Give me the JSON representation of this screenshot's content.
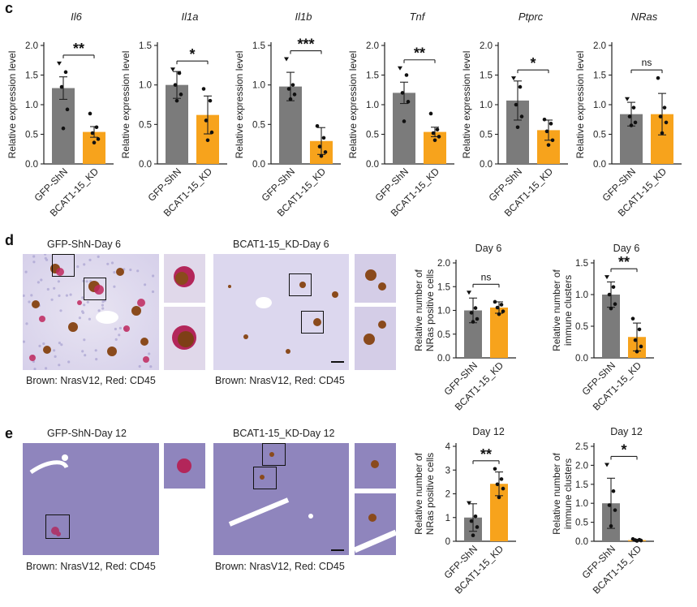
{
  "panels": {
    "c": {
      "letter": "c"
    },
    "d": {
      "letter": "d",
      "left_title": "GFP-ShN-Day 6",
      "right_title": "BCAT1-15_KD-Day 6",
      "caption_left": "Brown: NrasV12, Red: CD45",
      "caption_right": "Brown: NrasV12, Red: CD45"
    },
    "e": {
      "letter": "e",
      "left_title": "GFP-ShN-Day 12",
      "right_title": "BCAT1-15_KD-Day 12",
      "caption_left": "Brown: NrasV12, Red: CD45",
      "caption_right": "Brown: NrasV12, Red: CD45"
    }
  },
  "colors": {
    "control": "#7b7b7b",
    "knockdown": "#f7a31c",
    "text": "#1a1a1a"
  },
  "chart_data": [
    {
      "id": "c1",
      "type": "bar",
      "title": "Il6",
      "title_italic": true,
      "ylabel": "Relative expression level",
      "categories": [
        "GFP-ShN",
        "BCAT1-15_KD"
      ],
      "values": [
        1.28,
        0.54
      ],
      "errors": [
        0.19,
        0.09
      ],
      "ylim": [
        0,
        2.0
      ],
      "yticks": [
        "0.0",
        "0.5",
        "1.0",
        "1.5",
        "2.0"
      ],
      "significance": "**",
      "points": [
        [
          1.7,
          1.55,
          1.3,
          0.92,
          0.6
        ],
        [
          0.85,
          0.62,
          0.52,
          0.42,
          0.36
        ]
      ]
    },
    {
      "id": "c2",
      "type": "bar",
      "title": "Il1a",
      "title_italic": true,
      "ylabel": "Relative expression level",
      "categories": [
        "GFP-ShN",
        "BCAT1-15_KD"
      ],
      "values": [
        1.0,
        0.62
      ],
      "errors": [
        0.17,
        0.24
      ],
      "ylim": [
        0,
        1.5
      ],
      "yticks": [
        "0.0",
        "0.5",
        "1.0",
        "1.5"
      ],
      "significance": "*",
      "points": [
        [
          1.2,
          1.15,
          1.0,
          0.88,
          0.8
        ],
        [
          0.95,
          0.8,
          0.55,
          0.4,
          0.3
        ]
      ]
    },
    {
      "id": "c3",
      "type": "bar",
      "title": "Il1b",
      "title_italic": true,
      "ylabel": "Relative expression level",
      "categories": [
        "GFP-ShN",
        "BCAT1-15_KD"
      ],
      "values": [
        0.98,
        0.29
      ],
      "errors": [
        0.18,
        0.17
      ],
      "ylim": [
        0,
        1.5
      ],
      "yticks": [
        "0.0",
        "0.5",
        "1.0",
        "1.5"
      ],
      "significance": "***",
      "points": [
        [
          1.33,
          1.0,
          0.95,
          0.88,
          0.82
        ],
        [
          0.48,
          0.33,
          0.22,
          0.15,
          0.1
        ]
      ]
    },
    {
      "id": "c4",
      "type": "bar",
      "title": "Tnf",
      "title_italic": true,
      "ylabel": "Relative expression level",
      "categories": [
        "GFP-ShN",
        "BCAT1-15_KD"
      ],
      "values": [
        1.2,
        0.54
      ],
      "errors": [
        0.18,
        0.08
      ],
      "ylim": [
        0,
        2.0
      ],
      "yticks": [
        "0.0",
        "0.5",
        "1.0",
        "1.5",
        "2.0"
      ],
      "significance": "**",
      "points": [
        [
          1.62,
          1.5,
          1.2,
          1.05,
          0.72
        ],
        [
          0.85,
          0.58,
          0.52,
          0.46,
          0.4
        ]
      ]
    },
    {
      "id": "c5",
      "type": "bar",
      "title": "Ptprc",
      "title_italic": true,
      "ylabel": "Relative expression level",
      "categories": [
        "GFP-ShN",
        "BCAT1-15_KD"
      ],
      "values": [
        1.07,
        0.57
      ],
      "errors": [
        0.33,
        0.17
      ],
      "ylim": [
        0,
        2.0
      ],
      "yticks": [
        "0.0",
        "0.5",
        "1.0",
        "1.5",
        "2.0"
      ],
      "significance": "*",
      "points": [
        [
          1.45,
          1.3,
          1.0,
          0.8,
          0.62
        ],
        [
          0.75,
          0.68,
          0.55,
          0.4,
          0.32
        ]
      ]
    },
    {
      "id": "c6",
      "type": "bar",
      "title": "NRas",
      "title_italic": true,
      "ylabel": "Relative expression level",
      "categories": [
        "GFP-ShN",
        "BCAT1-15_KD"
      ],
      "values": [
        0.84,
        0.84
      ],
      "errors": [
        0.2,
        0.35
      ],
      "ylim": [
        0,
        2.0
      ],
      "yticks": [
        "0.0",
        "0.5",
        "1.0",
        "1.5",
        "2.0"
      ],
      "significance": "ns",
      "points": [
        [
          1.1,
          0.95,
          0.8,
          0.7,
          0.65
        ],
        [
          1.45,
          0.95,
          0.8,
          0.7,
          0.52
        ]
      ]
    },
    {
      "id": "d1",
      "type": "bar",
      "title": "Day 6",
      "title_italic": false,
      "ylabel": "Relative number of\nNRas positive cells",
      "categories": [
        "GFP-ShN",
        "BCAT1-15_KD"
      ],
      "values": [
        1.0,
        1.06
      ],
      "errors": [
        0.26,
        0.12
      ],
      "ylim": [
        0,
        2.0
      ],
      "yticks": [
        "0.0",
        "0.5",
        "1.0",
        "1.5",
        "2.0"
      ],
      "significance": "ns",
      "points": [
        [
          1.38,
          1.05,
          0.95,
          0.82,
          0.76
        ],
        [
          1.18,
          1.12,
          1.06,
          0.98,
          0.92
        ]
      ]
    },
    {
      "id": "d2",
      "type": "bar",
      "title": "Day 6",
      "title_italic": false,
      "ylabel": "Relative number of\nimmune clusters",
      "categories": [
        "GFP-ShN",
        "BCAT1-15_KD"
      ],
      "values": [
        1.0,
        0.33
      ],
      "errors": [
        0.2,
        0.22
      ],
      "ylim": [
        0,
        1.5
      ],
      "yticks": [
        "0.0",
        "0.5",
        "1.0",
        "1.5"
      ],
      "significance": "**",
      "points": [
        [
          1.28,
          1.12,
          1.0,
          0.85,
          0.78
        ],
        [
          0.62,
          0.45,
          0.28,
          0.18,
          0.1
        ]
      ]
    },
    {
      "id": "e1",
      "type": "bar",
      "title": "Day 12",
      "title_italic": false,
      "ylabel": "Relative number of\nNRas positive cells",
      "categories": [
        "GFP-ShN",
        "BCAT1-15_KD"
      ],
      "values": [
        1.0,
        2.42
      ],
      "errors": [
        0.58,
        0.5
      ],
      "ylim": [
        0,
        4
      ],
      "yticks": [
        "0",
        "1",
        "2",
        "3",
        "4"
      ],
      "significance": "**",
      "points": [
        [
          1.62,
          1.05,
          0.85,
          0.6,
          0.25
        ],
        [
          3.05,
          2.62,
          2.4,
          2.22,
          1.85
        ]
      ]
    },
    {
      "id": "e2",
      "type": "bar",
      "title": "Day 12",
      "title_italic": false,
      "ylabel": "Relative number of\nimmune clusters",
      "categories": [
        "GFP-ShN",
        "BCAT1-15_KD"
      ],
      "values": [
        1.0,
        0.03
      ],
      "errors": [
        0.66,
        0.02
      ],
      "ylim": [
        0,
        2.5
      ],
      "yticks": [
        "0.0",
        "0.5",
        "1.0",
        "1.5",
        "2.0",
        "2.5"
      ],
      "significance": "*",
      "points": [
        [
          2.02,
          1.32,
          0.95,
          0.82,
          0.4
        ],
        [
          0.06,
          0.04,
          0.03,
          0.02,
          0.01
        ]
      ]
    }
  ]
}
